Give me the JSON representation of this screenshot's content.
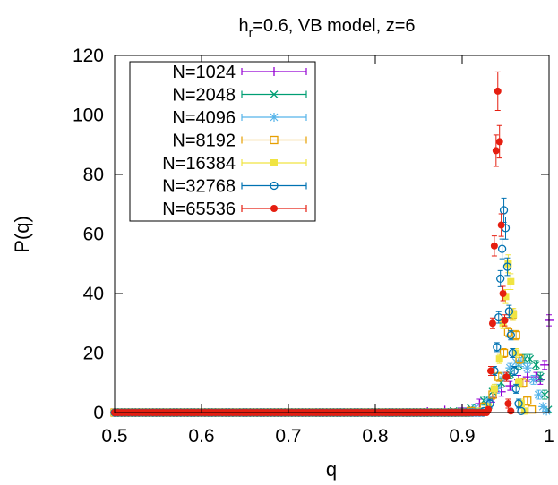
{
  "chart_data": {
    "type": "scatter",
    "title_main": "h",
    "title_sub": "r",
    "title_rest": "=0.6, VB model, z=6",
    "xlabel": "q",
    "ylabel": "P(q)",
    "xlim": [
      0.5,
      1.0
    ],
    "ylim": [
      0,
      120
    ],
    "x_ticks": [
      0.5,
      0.6,
      0.7,
      0.8,
      0.9,
      1
    ],
    "x_tick_labels": [
      "0.5",
      "0.6",
      "0.7",
      "0.8",
      "0.9",
      "1"
    ],
    "y_ticks": [
      0,
      20,
      40,
      60,
      80,
      100,
      120
    ],
    "y_tick_labels": [
      "0",
      "20",
      "40",
      "60",
      "80",
      "100",
      "120"
    ],
    "legend_position": "top-left",
    "series": [
      {
        "name": "N=1024",
        "color": "#9400d3",
        "marker": "plus",
        "points": [
          [
            0.86,
            0.3
          ],
          [
            0.88,
            0.8
          ],
          [
            0.9,
            1.5
          ],
          [
            0.92,
            3
          ],
          [
            0.935,
            5
          ],
          [
            0.945,
            7
          ],
          [
            0.955,
            9
          ],
          [
            0.965,
            11
          ],
          [
            0.975,
            12
          ],
          [
            0.985,
            12
          ],
          [
            0.99,
            11
          ],
          [
            0.995,
            16
          ],
          [
            1.0,
            31
          ]
        ]
      },
      {
        "name": "N=2048",
        "color": "#009e73",
        "marker": "cross",
        "points": [
          [
            0.89,
            0.5
          ],
          [
            0.91,
            1.5
          ],
          [
            0.925,
            4
          ],
          [
            0.935,
            7
          ],
          [
            0.945,
            10
          ],
          [
            0.955,
            13
          ],
          [
            0.965,
            16
          ],
          [
            0.972,
            18
          ],
          [
            0.978,
            18
          ],
          [
            0.985,
            16
          ],
          [
            0.99,
            12
          ],
          [
            0.995,
            6
          ],
          [
            0.999,
            1
          ]
        ]
      },
      {
        "name": "N=4096",
        "color": "#56b4e9",
        "marker": "star",
        "points": [
          [
            0.9,
            0.5
          ],
          [
            0.915,
            1.5
          ],
          [
            0.93,
            4
          ],
          [
            0.94,
            8
          ],
          [
            0.948,
            12
          ],
          [
            0.955,
            15
          ],
          [
            0.962,
            17
          ],
          [
            0.968,
            17
          ],
          [
            0.975,
            15
          ],
          [
            0.982,
            11
          ],
          [
            0.988,
            6
          ],
          [
            0.993,
            2
          ],
          [
            0.997,
            0.5
          ]
        ]
      },
      {
        "name": "N=8192",
        "color": "#e69f00",
        "marker": "square",
        "points": [
          [
            0.91,
            0.5
          ],
          [
            0.925,
            2
          ],
          [
            0.935,
            6
          ],
          [
            0.942,
            12
          ],
          [
            0.948,
            20
          ],
          [
            0.953,
            27
          ],
          [
            0.958,
            33
          ],
          [
            0.962,
            26
          ],
          [
            0.966,
            18
          ],
          [
            0.97,
            10
          ],
          [
            0.975,
            4
          ],
          [
            0.98,
            1
          ]
        ]
      },
      {
        "name": "N=16384",
        "color": "#f0e442",
        "marker": "square-filled",
        "points": [
          [
            0.92,
            0.5
          ],
          [
            0.93,
            2
          ],
          [
            0.937,
            8
          ],
          [
            0.943,
            18
          ],
          [
            0.947,
            30
          ],
          [
            0.95,
            39
          ],
          [
            0.953,
            50
          ],
          [
            0.956,
            44
          ],
          [
            0.959,
            33
          ],
          [
            0.962,
            20
          ],
          [
            0.965,
            10
          ],
          [
            0.968,
            3
          ],
          [
            0.972,
            0.5
          ]
        ]
      },
      {
        "name": "N=32768",
        "color": "#0072b2",
        "marker": "circle",
        "points": [
          [
            0.925,
            0.5
          ],
          [
            0.932,
            3
          ],
          [
            0.937,
            14
          ],
          [
            0.94,
            22
          ],
          [
            0.942,
            32
          ],
          [
            0.944,
            45
          ],
          [
            0.946,
            55
          ],
          [
            0.948,
            68
          ],
          [
            0.95,
            62
          ],
          [
            0.952,
            49
          ],
          [
            0.954,
            34
          ],
          [
            0.956,
            26
          ],
          [
            0.958,
            20
          ],
          [
            0.96,
            14
          ],
          [
            0.962,
            8
          ],
          [
            0.965,
            3
          ],
          [
            0.968,
            0.5
          ]
        ]
      },
      {
        "name": "N=65536",
        "color": "#e51e10",
        "marker": "circle-filled",
        "points": [
          [
            0.93,
            1
          ],
          [
            0.933,
            14
          ],
          [
            0.935,
            30
          ],
          [
            0.937,
            56
          ],
          [
            0.939,
            88
          ],
          [
            0.941,
            108
          ],
          [
            0.943,
            91
          ],
          [
            0.945,
            63
          ],
          [
            0.947,
            40
          ],
          [
            0.949,
            31
          ],
          [
            0.951,
            12
          ],
          [
            0.953,
            3
          ],
          [
            0.956,
            0.5
          ]
        ]
      }
    ]
  }
}
